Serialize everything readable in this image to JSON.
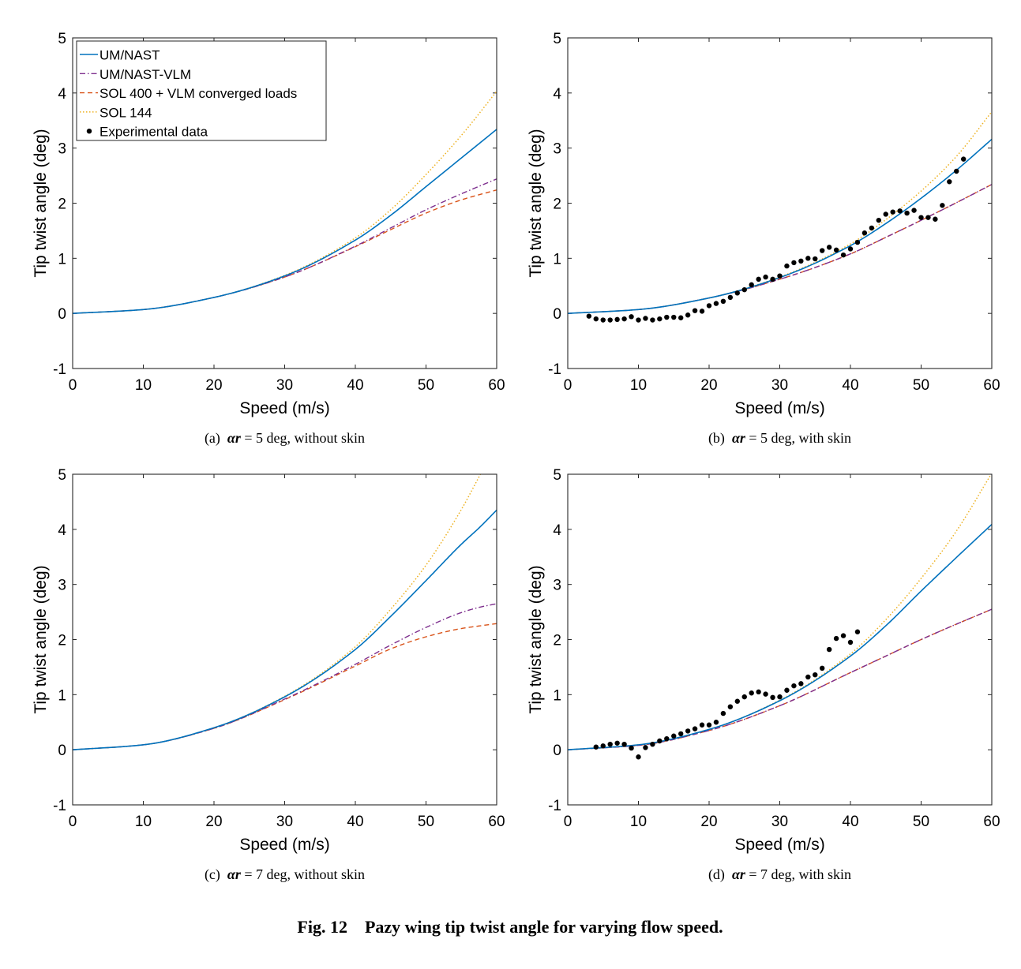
{
  "figure_caption": "Fig. 12    Pazy wing tip twist angle for varying flow speed.",
  "colors": {
    "um_nast": "#0072BD",
    "um_nast_vlm": "#7E2F8E",
    "sol400": "#D95319",
    "sol144": "#EDB120",
    "experimental": "#000000",
    "axis": "#262626"
  },
  "legend_items": [
    {
      "label": "UM/NAST",
      "series": "um_nast"
    },
    {
      "label": "UM/NAST-VLM",
      "series": "um_nast_vlm"
    },
    {
      "label": "SOL 400 + VLM converged loads",
      "series": "sol400"
    },
    {
      "label": "SOL 144",
      "series": "sol144"
    },
    {
      "label": "Experimental data",
      "series": "experimental"
    }
  ],
  "chart_data": [
    {
      "type": "line",
      "panel": "a",
      "caption": {
        "prefix": "(a)",
        "symbol": "αr",
        "suffix": "= 5 deg, without skin"
      },
      "xlabel": "Speed (m/s)",
      "ylabel": "Tip twist angle (deg)",
      "xlim": [
        0,
        60
      ],
      "ylim": [
        -1,
        5
      ],
      "xticks": [
        "0",
        "10",
        "20",
        "30",
        "40",
        "50",
        "60"
      ],
      "yticks": [
        "-1",
        "0",
        "1",
        "2",
        "3",
        "4",
        "5"
      ],
      "legend": "top-left",
      "grid": false,
      "x": [
        0,
        10,
        20,
        30,
        40,
        45,
        50,
        55,
        60
      ],
      "series": [
        {
          "name": "UM/NAST",
          "key": "um_nast",
          "values": [
            0,
            0.07,
            0.29,
            0.68,
            1.33,
            1.78,
            2.3,
            2.82,
            3.34
          ]
        },
        {
          "name": "UM/NAST-VLM",
          "key": "um_nast_vlm",
          "values": [
            0,
            0.07,
            0.29,
            0.66,
            1.22,
            1.55,
            1.88,
            2.17,
            2.44
          ]
        },
        {
          "name": "SOL 400 + VLM converged loads",
          "key": "sol400",
          "values": [
            0,
            0.07,
            0.29,
            0.66,
            1.21,
            1.52,
            1.82,
            2.06,
            2.24
          ]
        },
        {
          "name": "SOL 144",
          "key": "sol144",
          "values": [
            0,
            0.07,
            0.29,
            0.69,
            1.37,
            1.88,
            2.52,
            3.23,
            4.03
          ]
        }
      ],
      "experimental": null
    },
    {
      "type": "line",
      "panel": "b",
      "caption": {
        "prefix": "(b)",
        "symbol": "αr",
        "suffix": "= 5 deg, with skin"
      },
      "xlabel": "Speed (m/s)",
      "ylabel": "Tip twist angle (deg)",
      "xlim": [
        0,
        60
      ],
      "ylim": [
        -1,
        5
      ],
      "xticks": [
        "0",
        "10",
        "20",
        "30",
        "40",
        "50",
        "60"
      ],
      "yticks": [
        "-1",
        "0",
        "1",
        "2",
        "3",
        "4",
        "5"
      ],
      "grid": false,
      "x": [
        0,
        10,
        20,
        30,
        40,
        45,
        50,
        55,
        60
      ],
      "series": [
        {
          "name": "UM/NAST",
          "key": "um_nast",
          "values": [
            0,
            0.07,
            0.28,
            0.65,
            1.23,
            1.63,
            2.09,
            2.6,
            3.16
          ]
        },
        {
          "name": "UM/NAST-VLM",
          "key": "um_nast_vlm",
          "values": [
            0,
            0.07,
            0.28,
            0.62,
            1.08,
            1.38,
            1.69,
            2.01,
            2.34
          ]
        },
        {
          "name": "SOL 400 + VLM converged loads",
          "key": "sol400",
          "values": [
            0,
            0.07,
            0.28,
            0.62,
            1.08,
            1.38,
            1.69,
            2.01,
            2.34
          ]
        },
        {
          "name": "SOL 144",
          "key": "sol144",
          "values": [
            0,
            0.07,
            0.28,
            0.66,
            1.26,
            1.7,
            2.22,
            2.85,
            3.66
          ]
        }
      ],
      "experimental": {
        "x": [
          3,
          4,
          5,
          6,
          7,
          8,
          9,
          10,
          11,
          12,
          13,
          14,
          15,
          16,
          17,
          18,
          19,
          20,
          21,
          22,
          23,
          24,
          25,
          26,
          27,
          28,
          29,
          30,
          31,
          32,
          33,
          34,
          35,
          36,
          37,
          38,
          39,
          40,
          41,
          42,
          43,
          44,
          45,
          46,
          47,
          48,
          49,
          50,
          51,
          52,
          53,
          54,
          55,
          56
        ],
        "y": [
          -0.05,
          -0.1,
          -0.12,
          -0.12,
          -0.11,
          -0.1,
          -0.06,
          -0.12,
          -0.09,
          -0.12,
          -0.1,
          -0.07,
          -0.07,
          -0.08,
          -0.03,
          0.05,
          0.04,
          0.14,
          0.18,
          0.22,
          0.29,
          0.37,
          0.43,
          0.52,
          0.62,
          0.66,
          0.62,
          0.68,
          0.86,
          0.92,
          0.95,
          1.0,
          0.99,
          1.14,
          1.2,
          1.15,
          1.06,
          1.17,
          1.29,
          1.46,
          1.55,
          1.69,
          1.8,
          1.84,
          1.86,
          1.82,
          1.87,
          1.74,
          1.74,
          1.71,
          1.96,
          2.39,
          2.58,
          2.8
        ]
      }
    },
    {
      "type": "line",
      "panel": "c",
      "caption": {
        "prefix": "(c)",
        "symbol": "αr",
        "suffix": "= 7 deg, without skin"
      },
      "xlabel": "Speed (m/s)",
      "ylabel": "Tip twist angle (deg)",
      "xlim": [
        0,
        60
      ],
      "ylim": [
        -1,
        5
      ],
      "xticks": [
        "0",
        "10",
        "20",
        "30",
        "40",
        "50",
        "60"
      ],
      "yticks": [
        "-1",
        "0",
        "1",
        "2",
        "3",
        "4",
        "5"
      ],
      "grid": false,
      "x": [
        0,
        10,
        20,
        30,
        40,
        45,
        50,
        55,
        57.7,
        60
      ],
      "series": [
        {
          "name": "UM/NAST",
          "key": "um_nast",
          "values": [
            0,
            0.09,
            0.4,
            0.96,
            1.82,
            2.42,
            3.07,
            3.73,
            4.05,
            4.35
          ]
        },
        {
          "name": "UM/NAST-VLM",
          "key": "um_nast_vlm",
          "values": [
            0,
            0.09,
            0.39,
            0.92,
            1.55,
            1.9,
            2.22,
            2.49,
            2.59,
            2.65
          ]
        },
        {
          "name": "SOL 400 + VLM converged loads",
          "key": "sol400",
          "values": [
            0,
            0.09,
            0.39,
            0.91,
            1.52,
            1.83,
            2.05,
            2.2,
            2.25,
            2.29
          ]
        },
        {
          "name": "SOL 144",
          "key": "sol144",
          "values": [
            0,
            0.09,
            0.4,
            0.97,
            1.87,
            2.55,
            3.35,
            4.36,
            5.0,
            null
          ]
        }
      ],
      "experimental": null
    },
    {
      "type": "line",
      "panel": "d",
      "caption": {
        "prefix": "(d)",
        "symbol": "αr",
        "suffix": "= 7 deg, with skin"
      },
      "xlabel": "Speed (m/s)",
      "ylabel": "Tip twist angle (deg)",
      "xlim": [
        0,
        60
      ],
      "ylim": [
        -1,
        5
      ],
      "xticks": [
        "0",
        "10",
        "20",
        "30",
        "40",
        "50",
        "60"
      ],
      "yticks": [
        "-1",
        "0",
        "1",
        "2",
        "3",
        "4",
        "5"
      ],
      "grid": false,
      "x": [
        0,
        10,
        20,
        30,
        40,
        45,
        50,
        55,
        60
      ],
      "series": [
        {
          "name": "UM/NAST",
          "key": "um_nast",
          "values": [
            0,
            0.09,
            0.37,
            0.89,
            1.7,
            2.25,
            2.88,
            3.49,
            4.09
          ]
        },
        {
          "name": "UM/NAST-VLM",
          "key": "um_nast_vlm",
          "values": [
            0,
            0.08,
            0.35,
            0.8,
            1.4,
            1.7,
            2.0,
            2.28,
            2.55
          ]
        },
        {
          "name": "SOL 400 + VLM converged loads",
          "key": "sol400",
          "values": [
            0,
            0.08,
            0.35,
            0.8,
            1.4,
            1.7,
            2.0,
            2.28,
            2.55
          ]
        },
        {
          "name": "SOL 144",
          "key": "sol144",
          "values": [
            0,
            0.09,
            0.37,
            0.9,
            1.74,
            2.36,
            3.11,
            3.97,
            5.02
          ]
        }
      ],
      "experimental": {
        "x": [
          4,
          5,
          6,
          7,
          8,
          9,
          10,
          11,
          12,
          13,
          14,
          15,
          16,
          17,
          18,
          19,
          20,
          21,
          22,
          23,
          24,
          25,
          26,
          27,
          28,
          29,
          30,
          31,
          32,
          33,
          34,
          35,
          36,
          37,
          38,
          39,
          40,
          41
        ],
        "y": [
          0.05,
          0.07,
          0.1,
          0.12,
          0.1,
          0.03,
          -0.13,
          0.04,
          0.1,
          0.16,
          0.2,
          0.25,
          0.29,
          0.34,
          0.38,
          0.45,
          0.45,
          0.5,
          0.66,
          0.78,
          0.88,
          0.96,
          1.03,
          1.05,
          1.01,
          0.95,
          0.96,
          1.08,
          1.16,
          1.2,
          1.32,
          1.36,
          1.48,
          1.82,
          2.02,
          2.07,
          1.95,
          2.14
        ]
      }
    }
  ]
}
